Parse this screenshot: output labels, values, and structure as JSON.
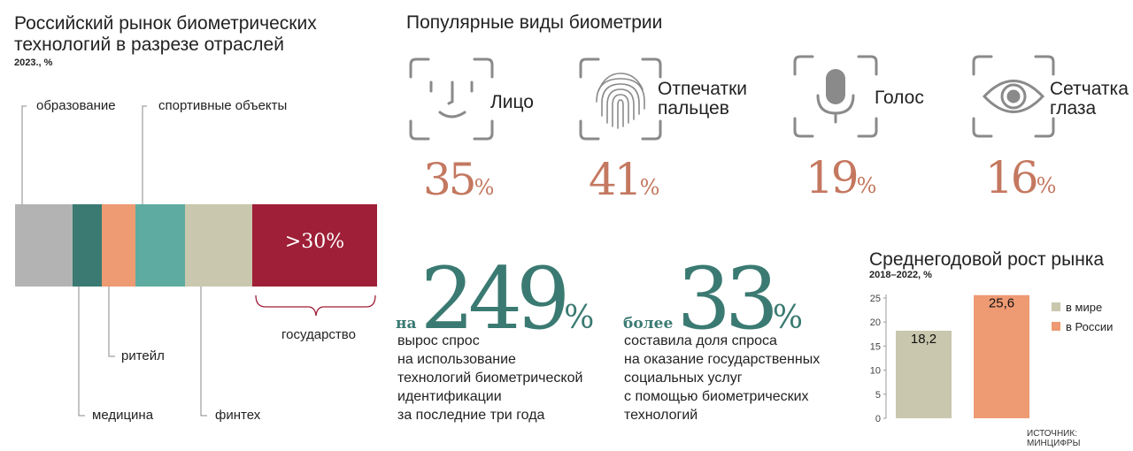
{
  "market": {
    "title_line1": "Российский рынок биометрических",
    "title_line2": "технологий в разрезе отраслей",
    "subtitle": "2023., %",
    "segments": [
      {
        "name": "образование",
        "color": "#b3b3b3"
      },
      {
        "name": "медицина",
        "color": "#3a7a72"
      },
      {
        "name": "ритейл",
        "color": "#ee9a73"
      },
      {
        "name": "спортивные объекты",
        "color": "#5eaba1"
      },
      {
        "name": "финтех",
        "color": "#c9c7ad"
      },
      {
        "name": "государство",
        "color": "#9e1f37",
        "value_label": ">30%"
      }
    ]
  },
  "biometrics": {
    "title": "Популярные виды биометрии",
    "items": [
      {
        "icon": "face-icon",
        "label": "Лицо",
        "value": "35",
        "unit": "%"
      },
      {
        "icon": "fingerprint-icon",
        "label_line1": "Отпечатки",
        "label_line2": "пальцев",
        "value": "41",
        "unit": "%"
      },
      {
        "icon": "microphone-icon",
        "label": "Голос",
        "value": "19",
        "unit": "%"
      },
      {
        "icon": "eye-icon",
        "label_line1": "Сетчатка",
        "label_line2": "глаза",
        "value": "16",
        "unit": "%"
      }
    ]
  },
  "stats": [
    {
      "prefix": "на",
      "value": "249",
      "unit": "%",
      "lines": [
        "вырос спрос",
        "на использование",
        "технологий биометрической",
        "идентификации",
        "за последние три года"
      ]
    },
    {
      "prefix": "более",
      "value": "33",
      "unit": "%",
      "lines": [
        "составила доля спроса",
        "на оказание государственных",
        "социальных услуг",
        "с помощью биометрических",
        "технологий"
      ]
    }
  ],
  "chart_data": {
    "type": "bar",
    "title": "Среднегодовой рост рынка",
    "subtitle": "2018–2022, %",
    "categories": [
      "в мире",
      "в России"
    ],
    "values": [
      18.2,
      25.6
    ],
    "value_labels": [
      "18,2",
      "25,6"
    ],
    "colors": [
      "#c9c7ad",
      "#ee9a73"
    ],
    "ylim": [
      0,
      25
    ],
    "yticks": [
      "0",
      "5",
      "10",
      "15",
      "20",
      "25"
    ],
    "legend": [
      "в мире",
      "в России"
    ],
    "legend_position": "right",
    "grid": false
  },
  "source": "ИСТОЧНИК: МИНЦИФРЫ"
}
